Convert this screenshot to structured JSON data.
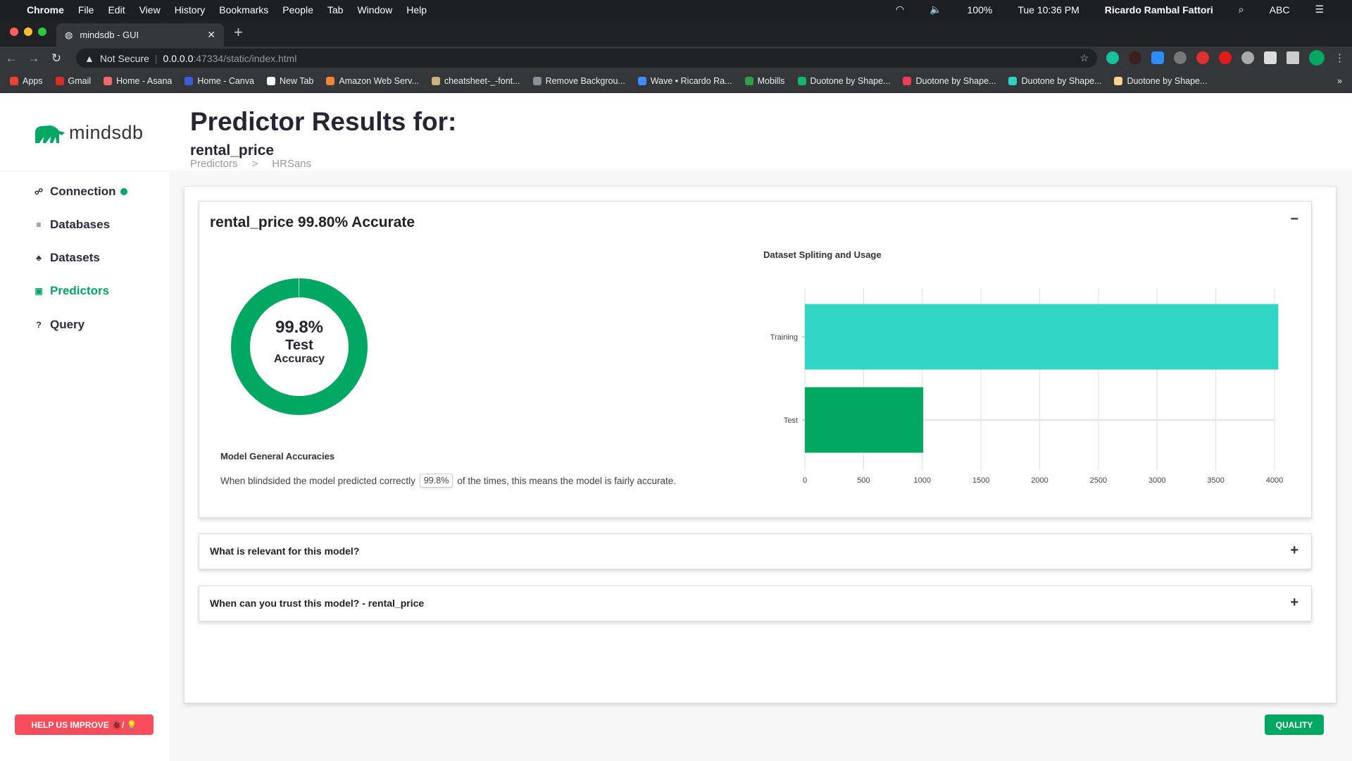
{
  "os_menu": {
    "app": "Chrome",
    "items": [
      "File",
      "Edit",
      "View",
      "History",
      "Bookmarks",
      "People",
      "Tab",
      "Window",
      "Help"
    ],
    "battery": "100%",
    "clock": "Tue 10:36 PM",
    "user": "Ricardo Rambal Fattori",
    "input": "ABC"
  },
  "browser": {
    "tab_title": "mindsdb - GUI",
    "security": "Not Secure",
    "url_host": "0.0.0.0",
    "url_path": ":47334/static/index.html",
    "bookmarks": [
      {
        "label": "Apps",
        "color": "#e94235"
      },
      {
        "label": "Gmail",
        "color": "#d93025"
      },
      {
        "label": "Home - Asana",
        "color": "#f06a6a"
      },
      {
        "label": "Home - Canva",
        "color": "#3b5bdb"
      },
      {
        "label": "New Tab",
        "color": "#ffffff"
      },
      {
        "label": "Amazon Web Serv...",
        "color": "#f58536"
      },
      {
        "label": "cheatsheet-_-font...",
        "color": "#c9b27c"
      },
      {
        "label": "Remove Backgrou...",
        "color": "#8a8fa0"
      },
      {
        "label": "Wave • Ricardo Ra...",
        "color": "#3d8bfd"
      },
      {
        "label": "Mobills",
        "color": "#2f9e44"
      },
      {
        "label": "Duotone by Shape...",
        "color": "#12b76a"
      },
      {
        "label": "Duotone by Shape...",
        "color": "#f03e5a"
      },
      {
        "label": "Duotone by Shape...",
        "color": "#2dd4bf"
      },
      {
        "label": "Duotone by Shape...",
        "color": "#fcd38d"
      }
    ]
  },
  "sidebar": {
    "logo": "mindsdb",
    "items": [
      {
        "label": "Connection",
        "icon": "connection-icon",
        "glyph": "☍"
      },
      {
        "label": "Databases",
        "icon": "database-icon",
        "glyph": "≡"
      },
      {
        "label": "Datasets",
        "icon": "datasets-icon",
        "glyph": "♣"
      },
      {
        "label": "Predictors",
        "icon": "predictor-icon",
        "glyph": "▣",
        "active": true
      },
      {
        "label": "Query",
        "icon": "question-icon",
        "glyph": "?"
      }
    ],
    "help_button": "HELP US IMPROVE 🐞/ 💡"
  },
  "header": {
    "title": "Predictor Results for:",
    "subtitle": "rental_price",
    "breadcrumb": [
      "Predictors",
      ">",
      "HRSans"
    ]
  },
  "results": {
    "title": "rental_price 99.80% Accurate",
    "collapse": "−",
    "donut": {
      "value": 99.8,
      "label": "99.8%",
      "line1": "Test",
      "line2": "Accuracy",
      "color": "#00a862"
    },
    "accuracies_title": "Model General Accuracies",
    "sentence_pre": "When blindsided the model predicted correctly",
    "sentence_value": "99.8%",
    "sentence_post": "of the times, this means the model is fairly accurate."
  },
  "chart_data": {
    "type": "bar",
    "orientation": "horizontal",
    "title": "Dataset Spliting and Usage",
    "categories": [
      "Training",
      "Test"
    ],
    "values": [
      4032,
      1008
    ],
    "colors": [
      "#31d6c5",
      "#00a862"
    ],
    "xlim": [
      0,
      4000
    ],
    "xticks": [
      "0",
      "500",
      "1000",
      "1500",
      "2000",
      "2500",
      "3000",
      "3500",
      "4000"
    ],
    "grid": true
  },
  "accordions": [
    {
      "label": "What is relevant for this model?",
      "toggle": "+"
    },
    {
      "label": "When can you trust this model? - rental_price",
      "toggle": "+"
    }
  ],
  "quality_button": "QUALITY"
}
